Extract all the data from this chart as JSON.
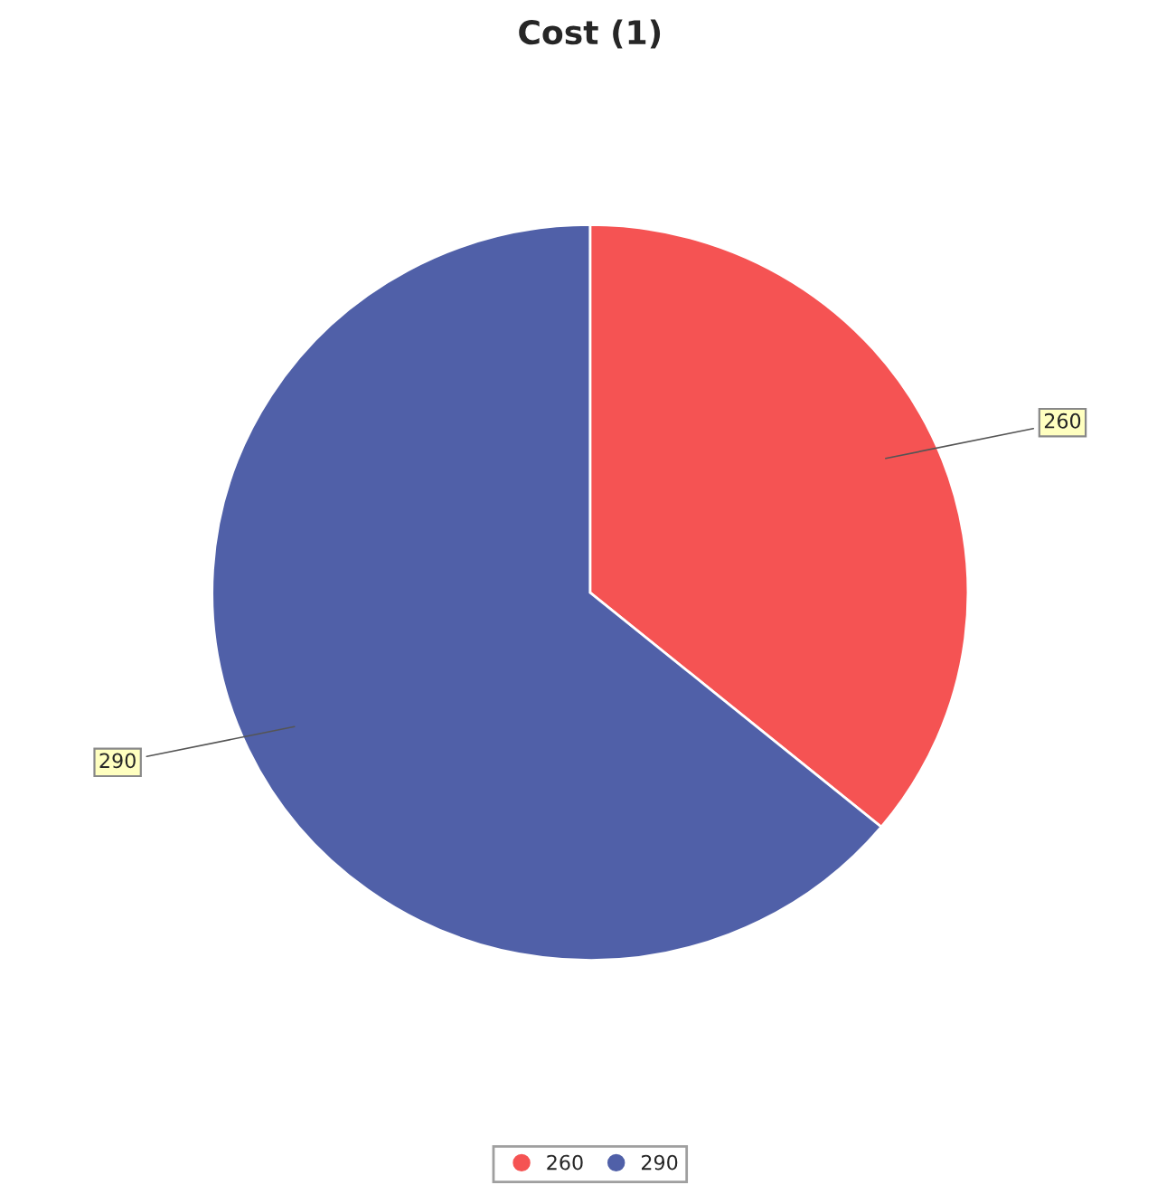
{
  "chart_data": {
    "type": "pie",
    "title": "Cost (1)",
    "categories": [
      "260",
      "290"
    ],
    "values": [
      36,
      64
    ],
    "colors": [
      "#f55353",
      "#5060a8"
    ],
    "legend": "bottom"
  }
}
